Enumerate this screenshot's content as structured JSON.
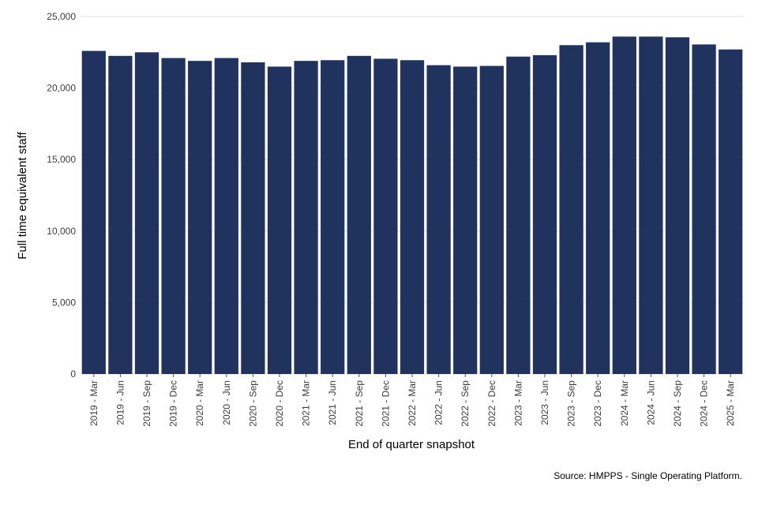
{
  "chart_data": {
    "type": "bar",
    "title": "",
    "xlabel": "End of quarter snapshot",
    "ylabel": "Full time equivalent staff",
    "source": "Source: HMPPS - Single Operating Platform.",
    "ylim": [
      0,
      25000
    ],
    "yticks": [
      0,
      5000,
      10000,
      15000,
      20000,
      25000
    ],
    "ytick_labels": [
      "0",
      "5,000",
      "10,000",
      "15,000",
      "20,000",
      "25,000"
    ],
    "grid": true,
    "bar_color": "#1f335e",
    "categories": [
      "2019 - Mar",
      "2019 - Jun",
      "2019 - Sep",
      "2019 - Dec",
      "2020 - Mar",
      "2020 - Jun",
      "2020 - Sep",
      "2020 - Dec",
      "2021 - Mar",
      "2021 - Jun",
      "2021 - Sep",
      "2021 - Dec",
      "2022 - Mar",
      "2022 - Jun",
      "2022 - Sep",
      "2022 - Dec",
      "2023 - Mar",
      "2023 - Jun",
      "2023 - Sep",
      "2023 - Dec",
      "2024 - Mar",
      "2024 - Jun",
      "2024 - Sep",
      "2024 - Dec",
      "2025 - Mar"
    ],
    "values": [
      22600,
      22250,
      22500,
      22100,
      21900,
      22100,
      21800,
      21500,
      21900,
      21950,
      22250,
      22050,
      21950,
      21600,
      21500,
      21550,
      22200,
      22300,
      23000,
      23200,
      23600,
      23600,
      23550,
      23050,
      22700
    ]
  }
}
